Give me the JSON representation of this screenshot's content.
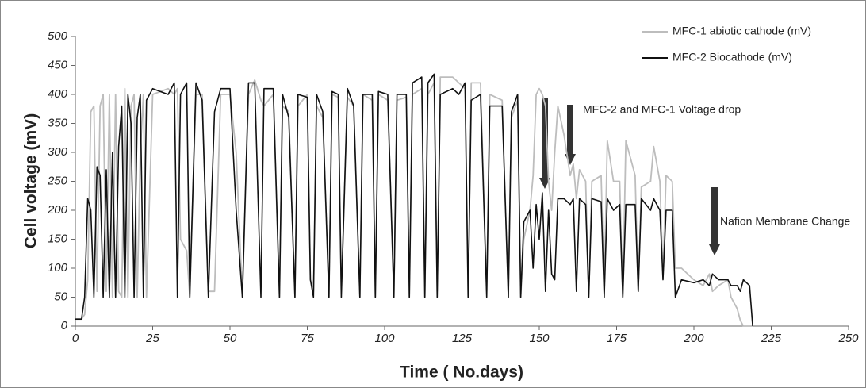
{
  "chart_data": {
    "type": "line",
    "x_label": "Time ( No.days)",
    "y_label": "Cell voltage (mV)",
    "x": [
      0,
      2,
      3,
      4,
      5,
      6,
      7,
      8,
      9,
      10,
      11,
      12,
      13,
      14,
      15,
      16,
      17,
      18,
      19,
      20,
      21,
      22,
      23,
      25,
      30,
      32,
      33,
      34,
      36,
      37,
      39,
      41,
      43,
      45,
      47,
      50,
      52,
      54,
      56,
      58,
      60,
      61,
      64,
      66,
      67,
      69,
      71,
      72,
      75,
      76,
      77,
      78,
      80,
      82,
      83,
      85,
      86,
      88,
      90,
      92,
      93,
      96,
      97,
      98,
      101,
      103,
      104,
      107,
      108,
      109,
      112,
      113,
      114,
      116,
      117,
      118,
      122,
      124,
      126,
      127,
      128,
      131,
      133,
      134,
      138,
      140,
      141,
      143,
      144,
      145,
      147,
      148,
      149,
      150,
      151,
      152,
      153,
      154,
      155,
      156,
      158,
      160,
      161,
      162,
      163,
      165,
      166,
      167,
      170,
      171,
      172,
      174,
      176,
      177,
      178,
      181,
      182,
      183,
      186,
      187,
      189,
      190,
      191,
      193,
      194,
      196,
      200,
      203,
      205,
      206,
      208,
      211,
      212,
      214,
      215,
      216,
      218,
      219
    ],
    "series": [
      {
        "name": "MFC-1 abiotic cathode (mV)",
        "color": "#bdbdbd",
        "values": [
          12,
          12,
          20,
          80,
          370,
          380,
          60,
          380,
          400,
          60,
          400,
          50,
          400,
          60,
          50,
          410,
          50,
          380,
          400,
          50,
          300,
          400,
          50,
          400,
          410,
          400,
          410,
          150,
          130,
          50,
          400,
          400,
          60,
          60,
          400,
          400,
          300,
          50,
          400,
          425,
          390,
          380,
          400,
          50,
          380,
          370,
          50,
          380,
          400,
          80,
          60,
          380,
          360,
          50,
          400,
          395,
          60,
          395,
          380,
          50,
          400,
          390,
          50,
          400,
          390,
          50,
          390,
          395,
          50,
          400,
          410,
          50,
          400,
          420,
          60,
          430,
          430,
          420,
          410,
          50,
          420,
          420,
          60,
          400,
          390,
          50,
          360,
          390,
          50,
          150,
          200,
          260,
          400,
          410,
          400,
          380,
          250,
          200,
          300,
          380,
          330,
          260,
          280,
          220,
          270,
          250,
          50,
          250,
          260,
          60,
          320,
          250,
          250,
          50,
          320,
          260,
          60,
          240,
          250,
          310,
          250,
          90,
          260,
          250,
          100,
          100,
          80,
          70,
          90,
          60,
          70,
          80,
          50,
          30,
          10,
          0,
          0,
          0
        ]
      },
      {
        "name": "MFC-2 Biocathode (mV)",
        "color": "#111111",
        "values": [
          12,
          12,
          50,
          220,
          200,
          50,
          275,
          260,
          50,
          270,
          50,
          300,
          50,
          310,
          380,
          50,
          400,
          350,
          50,
          360,
          400,
          50,
          390,
          410,
          400,
          420,
          50,
          400,
          420,
          50,
          420,
          390,
          50,
          370,
          410,
          410,
          200,
          50,
          420,
          420,
          50,
          410,
          410,
          50,
          400,
          360,
          50,
          400,
          395,
          80,
          50,
          400,
          370,
          50,
          405,
          400,
          50,
          410,
          380,
          50,
          400,
          400,
          50,
          405,
          400,
          50,
          400,
          400,
          50,
          420,
          430,
          50,
          420,
          435,
          50,
          400,
          410,
          400,
          420,
          50,
          390,
          400,
          50,
          380,
          380,
          50,
          370,
          400,
          50,
          180,
          200,
          100,
          210,
          150,
          230,
          60,
          200,
          90,
          80,
          220,
          220,
          210,
          220,
          60,
          220,
          210,
          50,
          220,
          215,
          50,
          220,
          200,
          210,
          50,
          210,
          210,
          60,
          220,
          200,
          220,
          200,
          80,
          200,
          200,
          50,
          80,
          75,
          80,
          70,
          90,
          80,
          80,
          70,
          70,
          60,
          80,
          70,
          0
        ]
      }
    ],
    "xlim": [
      0,
      250
    ],
    "xticks": [
      0,
      25,
      50,
      75,
      100,
      125,
      150,
      175,
      200,
      225,
      250
    ],
    "ylim": [
      0,
      500
    ],
    "yticks": [
      0,
      50,
      100,
      150,
      200,
      250,
      300,
      350,
      400,
      450,
      500
    ],
    "legend": "upper right",
    "annotations": [
      "MFC-2 and MFC-1 Voltage drop",
      "Nafion Membrane Change"
    ]
  }
}
